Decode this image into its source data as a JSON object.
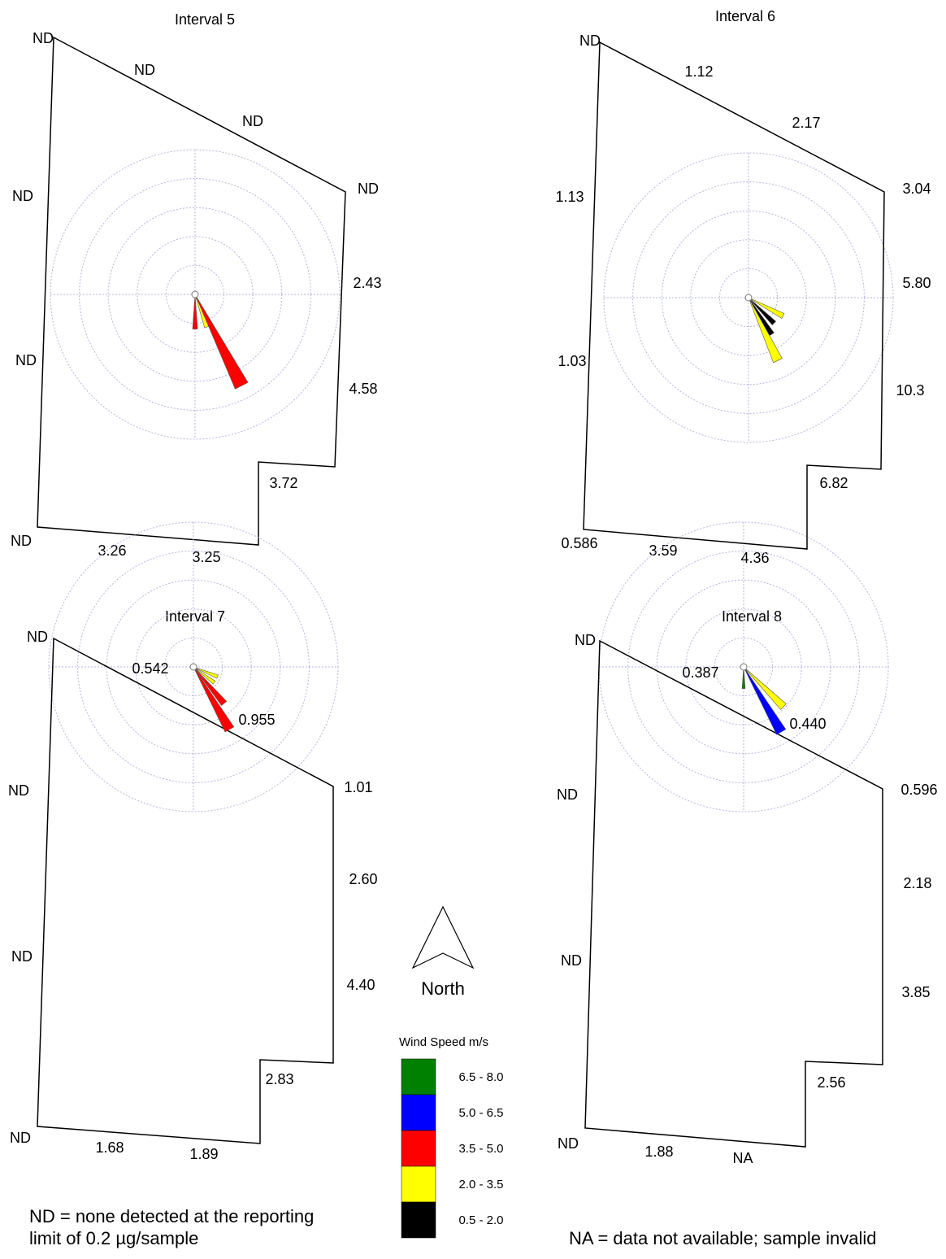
{
  "panels": [
    {
      "title": "Interval 5",
      "labels": [
        "ND",
        "ND",
        "ND",
        "ND",
        "2.43",
        "4.58",
        "3.72",
        "3.25",
        "3.26",
        "ND",
        "ND",
        "ND"
      ],
      "petals": [
        {
          "color": "red",
          "dir": 180,
          "len": 0.24
        },
        {
          "color": "yellow",
          "dir": 160,
          "len": 0.24
        },
        {
          "color": "red",
          "dir": 153,
          "len": 0.71
        }
      ]
    },
    {
      "title": "Interval 6",
      "labels": [
        "ND",
        "1.12",
        "2.17",
        "3.04",
        "5.80",
        "10.3",
        "6.82",
        "4.36",
        "3.59",
        "0.586",
        "1.03",
        "1.13"
      ],
      "petals": [
        {
          "color": "yellow",
          "dir": 118,
          "len": 0.27
        },
        {
          "color": "black",
          "dir": 135,
          "len": 0.25
        },
        {
          "color": "black",
          "dir": 148,
          "len": 0.3
        },
        {
          "color": "yellow",
          "dir": 155,
          "len": 0.48
        }
      ]
    },
    {
      "title": "Interval 7",
      "labels": [
        "ND",
        "0.542",
        "0.955",
        "1.01",
        "2.60",
        "4.40",
        "2.83",
        "1.89",
        "1.68",
        "ND",
        "ND",
        "ND"
      ],
      "petals": [
        {
          "color": "yellow",
          "dir": 112,
          "len": 0.18
        },
        {
          "color": "yellow",
          "dir": 127,
          "len": 0.18
        },
        {
          "color": "red",
          "dir": 140,
          "len": 0.33
        },
        {
          "color": "red",
          "dir": 150,
          "len": 0.5
        }
      ]
    },
    {
      "title": "Interval 8",
      "labels": [
        "ND",
        "0.387",
        "0.440",
        "0.596",
        "2.18",
        "3.85",
        "2.56",
        "NA",
        "1.88",
        "ND",
        "ND",
        "ND"
      ],
      "petals": [
        {
          "color": "green",
          "dir": 180,
          "len": 0.15
        },
        {
          "color": "yellow",
          "dir": 135,
          "len": 0.39
        },
        {
          "color": "red",
          "dir": 150,
          "len": 0.26
        },
        {
          "color": "blue",
          "dir": 150,
          "len": 0.52
        }
      ]
    }
  ],
  "north_label": "North",
  "legend": {
    "title": "Wind Speed m/s",
    "items": [
      {
        "label": "6.5 - 8.0",
        "color": "#008000"
      },
      {
        "label": "5.0 - 6.5",
        "color": "#0000ff"
      },
      {
        "label": "3.5 - 5.0",
        "color": "#ff0000"
      },
      {
        "label": "2.0 - 3.5",
        "color": "#ffff00"
      },
      {
        "label": "0.5 - 2.0",
        "color": "#000000"
      }
    ]
  },
  "notes": {
    "nd": "ND = none detected at the reporting limit of 0.2 µg/sample",
    "na": "NA = data not available; sample invalid"
  },
  "speed_colors": {
    "green": "#008000",
    "blue": "#0000ff",
    "red": "#ff0000",
    "yellow": "#ffff00",
    "black": "#000000"
  }
}
